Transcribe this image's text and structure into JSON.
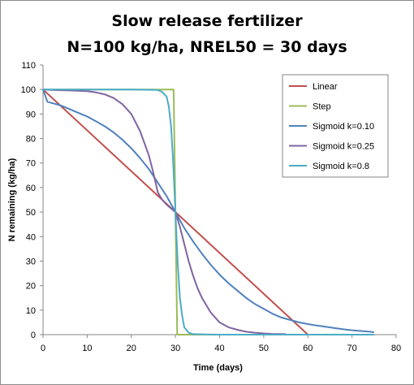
{
  "chart_data": {
    "type": "line",
    "title_line1": "Slow release fertilizer",
    "title_line2": "N=100 kg/ha, NREL50 = 30 days",
    "xlabel": "Time (days)",
    "ylabel": "N remaining (kg/ha)",
    "xlim": [
      0,
      80
    ],
    "ylim": [
      0,
      110
    ],
    "xticks": [
      0,
      10,
      20,
      30,
      40,
      50,
      60,
      70,
      80
    ],
    "yticks": [
      0,
      10,
      20,
      30,
      40,
      50,
      60,
      70,
      80,
      90,
      100,
      110
    ],
    "grid": false,
    "legend_position": "top-right",
    "series": [
      {
        "name": "Linear",
        "color": "#c0504d",
        "x": [
          0,
          60
        ],
        "y": [
          100,
          0
        ]
      },
      {
        "name": "Step",
        "color": "#9bbb59",
        "x": [
          0,
          29.6,
          30.4,
          75
        ],
        "y": [
          100,
          100,
          0,
          0
        ]
      },
      {
        "name": "Sigmoid k=0.10",
        "color": "#4f81bd",
        "x": [
          0,
          1,
          2,
          4,
          6,
          8,
          10,
          12,
          14,
          16,
          18,
          20,
          22,
          24,
          26,
          28,
          30,
          32,
          34,
          36,
          38,
          40,
          42,
          44,
          46,
          48,
          50,
          52,
          54,
          56,
          58,
          60,
          62,
          64,
          66,
          68,
          70,
          72,
          74,
          75
        ],
        "y": [
          100,
          95,
          94.5,
          93.5,
          92,
          90.5,
          89,
          87,
          85,
          82.5,
          79.5,
          76,
          72,
          67.5,
          62,
          56.5,
          50,
          43.5,
          38,
          33,
          28.5,
          24.5,
          21,
          18,
          15,
          12.5,
          10.5,
          8.5,
          7,
          6,
          5,
          4.3,
          3.7,
          3.2,
          2.7,
          2.2,
          1.8,
          1.5,
          1.2,
          1
        ]
      },
      {
        "name": "Sigmoid k=0.25",
        "color": "#8064a2",
        "x": [
          0,
          2,
          4,
          6,
          8,
          10,
          12,
          14,
          16,
          18,
          20,
          22,
          24,
          25,
          26,
          27,
          28,
          29,
          30,
          31,
          32,
          33,
          34,
          35,
          36,
          38,
          40,
          42,
          44,
          46,
          48,
          50,
          52,
          55
        ],
        "y": [
          100,
          99.8,
          99.7,
          99.6,
          99.5,
          99.3,
          98.8,
          98,
          96.5,
          94,
          90,
          83,
          73,
          66,
          58,
          55,
          53,
          51.5,
          50,
          44,
          37,
          30,
          24,
          19,
          15,
          9,
          5,
          3,
          2,
          1.2,
          0.8,
          0.5,
          0.3,
          0.2
        ]
      },
      {
        "name": "Sigmoid k=0.8",
        "color": "#4bacc6",
        "x": [
          0,
          10,
          20,
          26,
          27,
          28,
          28.5,
          29,
          29.5,
          30,
          30.5,
          31,
          31.5,
          32,
          33,
          34,
          40,
          75
        ],
        "y": [
          100,
          100,
          100,
          99.8,
          99,
          97,
          93,
          85,
          70,
          50,
          30,
          15,
          8,
          3,
          0.8,
          0.2,
          0,
          0
        ]
      }
    ]
  }
}
